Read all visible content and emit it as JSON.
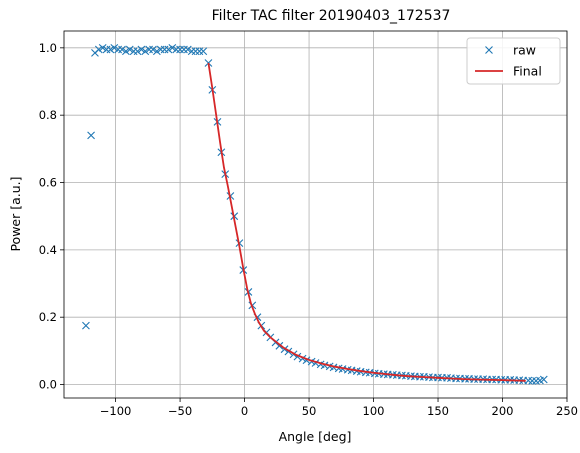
{
  "chart_data": {
    "type": "scatter",
    "title": "Filter TAC filter 20190403_172537",
    "xlabel": "Angle [deg]",
    "ylabel": "Power [a.u.]",
    "xlim": [
      -140,
      250
    ],
    "ylim": [
      -0.04,
      1.05
    ],
    "xticks": [
      -100,
      -50,
      0,
      50,
      100,
      150,
      200,
      250
    ],
    "xtick_labels": [
      "−100",
      "−50",
      "0",
      "50",
      "100",
      "150",
      "200",
      "250"
    ],
    "yticks": [
      0.0,
      0.2,
      0.4,
      0.6,
      0.8,
      1.0
    ],
    "ytick_labels": [
      "0.0",
      "0.2",
      "0.4",
      "0.6",
      "0.8",
      "1.0"
    ],
    "grid": true,
    "legend": {
      "position": "top-right"
    },
    "series": [
      {
        "name": "raw",
        "kind": "scatter",
        "marker": "x",
        "color": "#1f77b4",
        "points": [
          [
            -123,
            0.175
          ],
          [
            -119,
            0.74
          ],
          [
            -116,
            0.985
          ],
          [
            -113,
            0.995
          ],
          [
            -110,
            1.0
          ],
          [
            -107,
            0.995
          ],
          [
            -104,
            0.995
          ],
          [
            -101,
            1.0
          ],
          [
            -98,
            0.995
          ],
          [
            -95,
            0.995
          ],
          [
            -92,
            0.99
          ],
          [
            -89,
            0.995
          ],
          [
            -86,
            0.99
          ],
          [
            -83,
            0.99
          ],
          [
            -80,
            0.995
          ],
          [
            -77,
            0.99
          ],
          [
            -74,
            0.995
          ],
          [
            -71,
            0.995
          ],
          [
            -68,
            0.99
          ],
          [
            -65,
            0.995
          ],
          [
            -62,
            0.995
          ],
          [
            -59,
            0.995
          ],
          [
            -56,
            1.0
          ],
          [
            -53,
            0.995
          ],
          [
            -50,
            0.995
          ],
          [
            -47,
            0.995
          ],
          [
            -44,
            0.995
          ],
          [
            -41,
            0.99
          ],
          [
            -38,
            0.99
          ],
          [
            -35,
            0.99
          ],
          [
            -32,
            0.99
          ],
          [
            -28,
            0.955
          ],
          [
            -25,
            0.875
          ],
          [
            -21,
            0.78
          ],
          [
            -18,
            0.69
          ],
          [
            -15,
            0.625
          ],
          [
            -11,
            0.56
          ],
          [
            -8,
            0.5
          ],
          [
            -4,
            0.42
          ],
          [
            -1,
            0.34
          ],
          [
            3,
            0.275
          ],
          [
            6,
            0.235
          ],
          [
            10,
            0.2
          ],
          [
            13,
            0.175
          ],
          [
            17,
            0.155
          ],
          [
            20,
            0.14
          ],
          [
            24,
            0.125
          ],
          [
            27,
            0.115
          ],
          [
            31,
            0.105
          ],
          [
            34,
            0.098
          ],
          [
            38,
            0.09
          ],
          [
            41,
            0.083
          ],
          [
            45,
            0.077
          ],
          [
            48,
            0.072
          ],
          [
            52,
            0.068
          ],
          [
            55,
            0.064
          ],
          [
            59,
            0.06
          ],
          [
            62,
            0.057
          ],
          [
            66,
            0.054
          ],
          [
            69,
            0.051
          ],
          [
            73,
            0.048
          ],
          [
            76,
            0.046
          ],
          [
            80,
            0.044
          ],
          [
            83,
            0.042
          ],
          [
            87,
            0.04
          ],
          [
            90,
            0.038
          ],
          [
            94,
            0.036
          ],
          [
            97,
            0.035
          ],
          [
            101,
            0.033
          ],
          [
            104,
            0.032
          ],
          [
            108,
            0.031
          ],
          [
            111,
            0.03
          ],
          [
            115,
            0.029
          ],
          [
            118,
            0.028
          ],
          [
            122,
            0.027
          ],
          [
            125,
            0.026
          ],
          [
            129,
            0.025
          ],
          [
            132,
            0.024
          ],
          [
            136,
            0.023
          ],
          [
            139,
            0.023
          ],
          [
            143,
            0.022
          ],
          [
            146,
            0.021
          ],
          [
            150,
            0.021
          ],
          [
            153,
            0.02
          ],
          [
            157,
            0.02
          ],
          [
            160,
            0.019
          ],
          [
            164,
            0.018
          ],
          [
            167,
            0.018
          ],
          [
            171,
            0.017
          ],
          [
            174,
            0.017
          ],
          [
            178,
            0.016
          ],
          [
            181,
            0.016
          ],
          [
            185,
            0.016
          ],
          [
            188,
            0.015
          ],
          [
            192,
            0.015
          ],
          [
            195,
            0.015
          ],
          [
            199,
            0.014
          ],
          [
            202,
            0.014
          ],
          [
            206,
            0.014
          ],
          [
            209,
            0.013
          ],
          [
            213,
            0.013
          ],
          [
            216,
            0.012
          ],
          [
            220,
            0.012
          ],
          [
            223,
            0.011
          ],
          [
            226,
            0.011
          ],
          [
            229,
            0.012
          ],
          [
            232,
            0.015
          ]
        ]
      },
      {
        "name": "Final",
        "kind": "line",
        "color": "#d62728",
        "points": [
          [
            -28,
            0.955
          ],
          [
            -25,
            0.88
          ],
          [
            -22,
            0.8
          ],
          [
            -19,
            0.72
          ],
          [
            -16,
            0.645
          ],
          [
            -13,
            0.59
          ],
          [
            -10,
            0.53
          ],
          [
            -7,
            0.47
          ],
          [
            -4,
            0.41
          ],
          [
            -1,
            0.345
          ],
          [
            2,
            0.285
          ],
          [
            5,
            0.24
          ],
          [
            8,
            0.21
          ],
          [
            11,
            0.185
          ],
          [
            15,
            0.16
          ],
          [
            20,
            0.14
          ],
          [
            25,
            0.125
          ],
          [
            30,
            0.11
          ],
          [
            40,
            0.088
          ],
          [
            50,
            0.073
          ],
          [
            60,
            0.062
          ],
          [
            70,
            0.053
          ],
          [
            80,
            0.046
          ],
          [
            90,
            0.04
          ],
          [
            100,
            0.035
          ],
          [
            110,
            0.031
          ],
          [
            120,
            0.027
          ],
          [
            130,
            0.024
          ],
          [
            140,
            0.022
          ],
          [
            150,
            0.02
          ],
          [
            160,
            0.018
          ],
          [
            170,
            0.016
          ],
          [
            180,
            0.015
          ],
          [
            190,
            0.014
          ],
          [
            200,
            0.013
          ],
          [
            210,
            0.012
          ],
          [
            218,
            0.011
          ]
        ]
      }
    ]
  }
}
